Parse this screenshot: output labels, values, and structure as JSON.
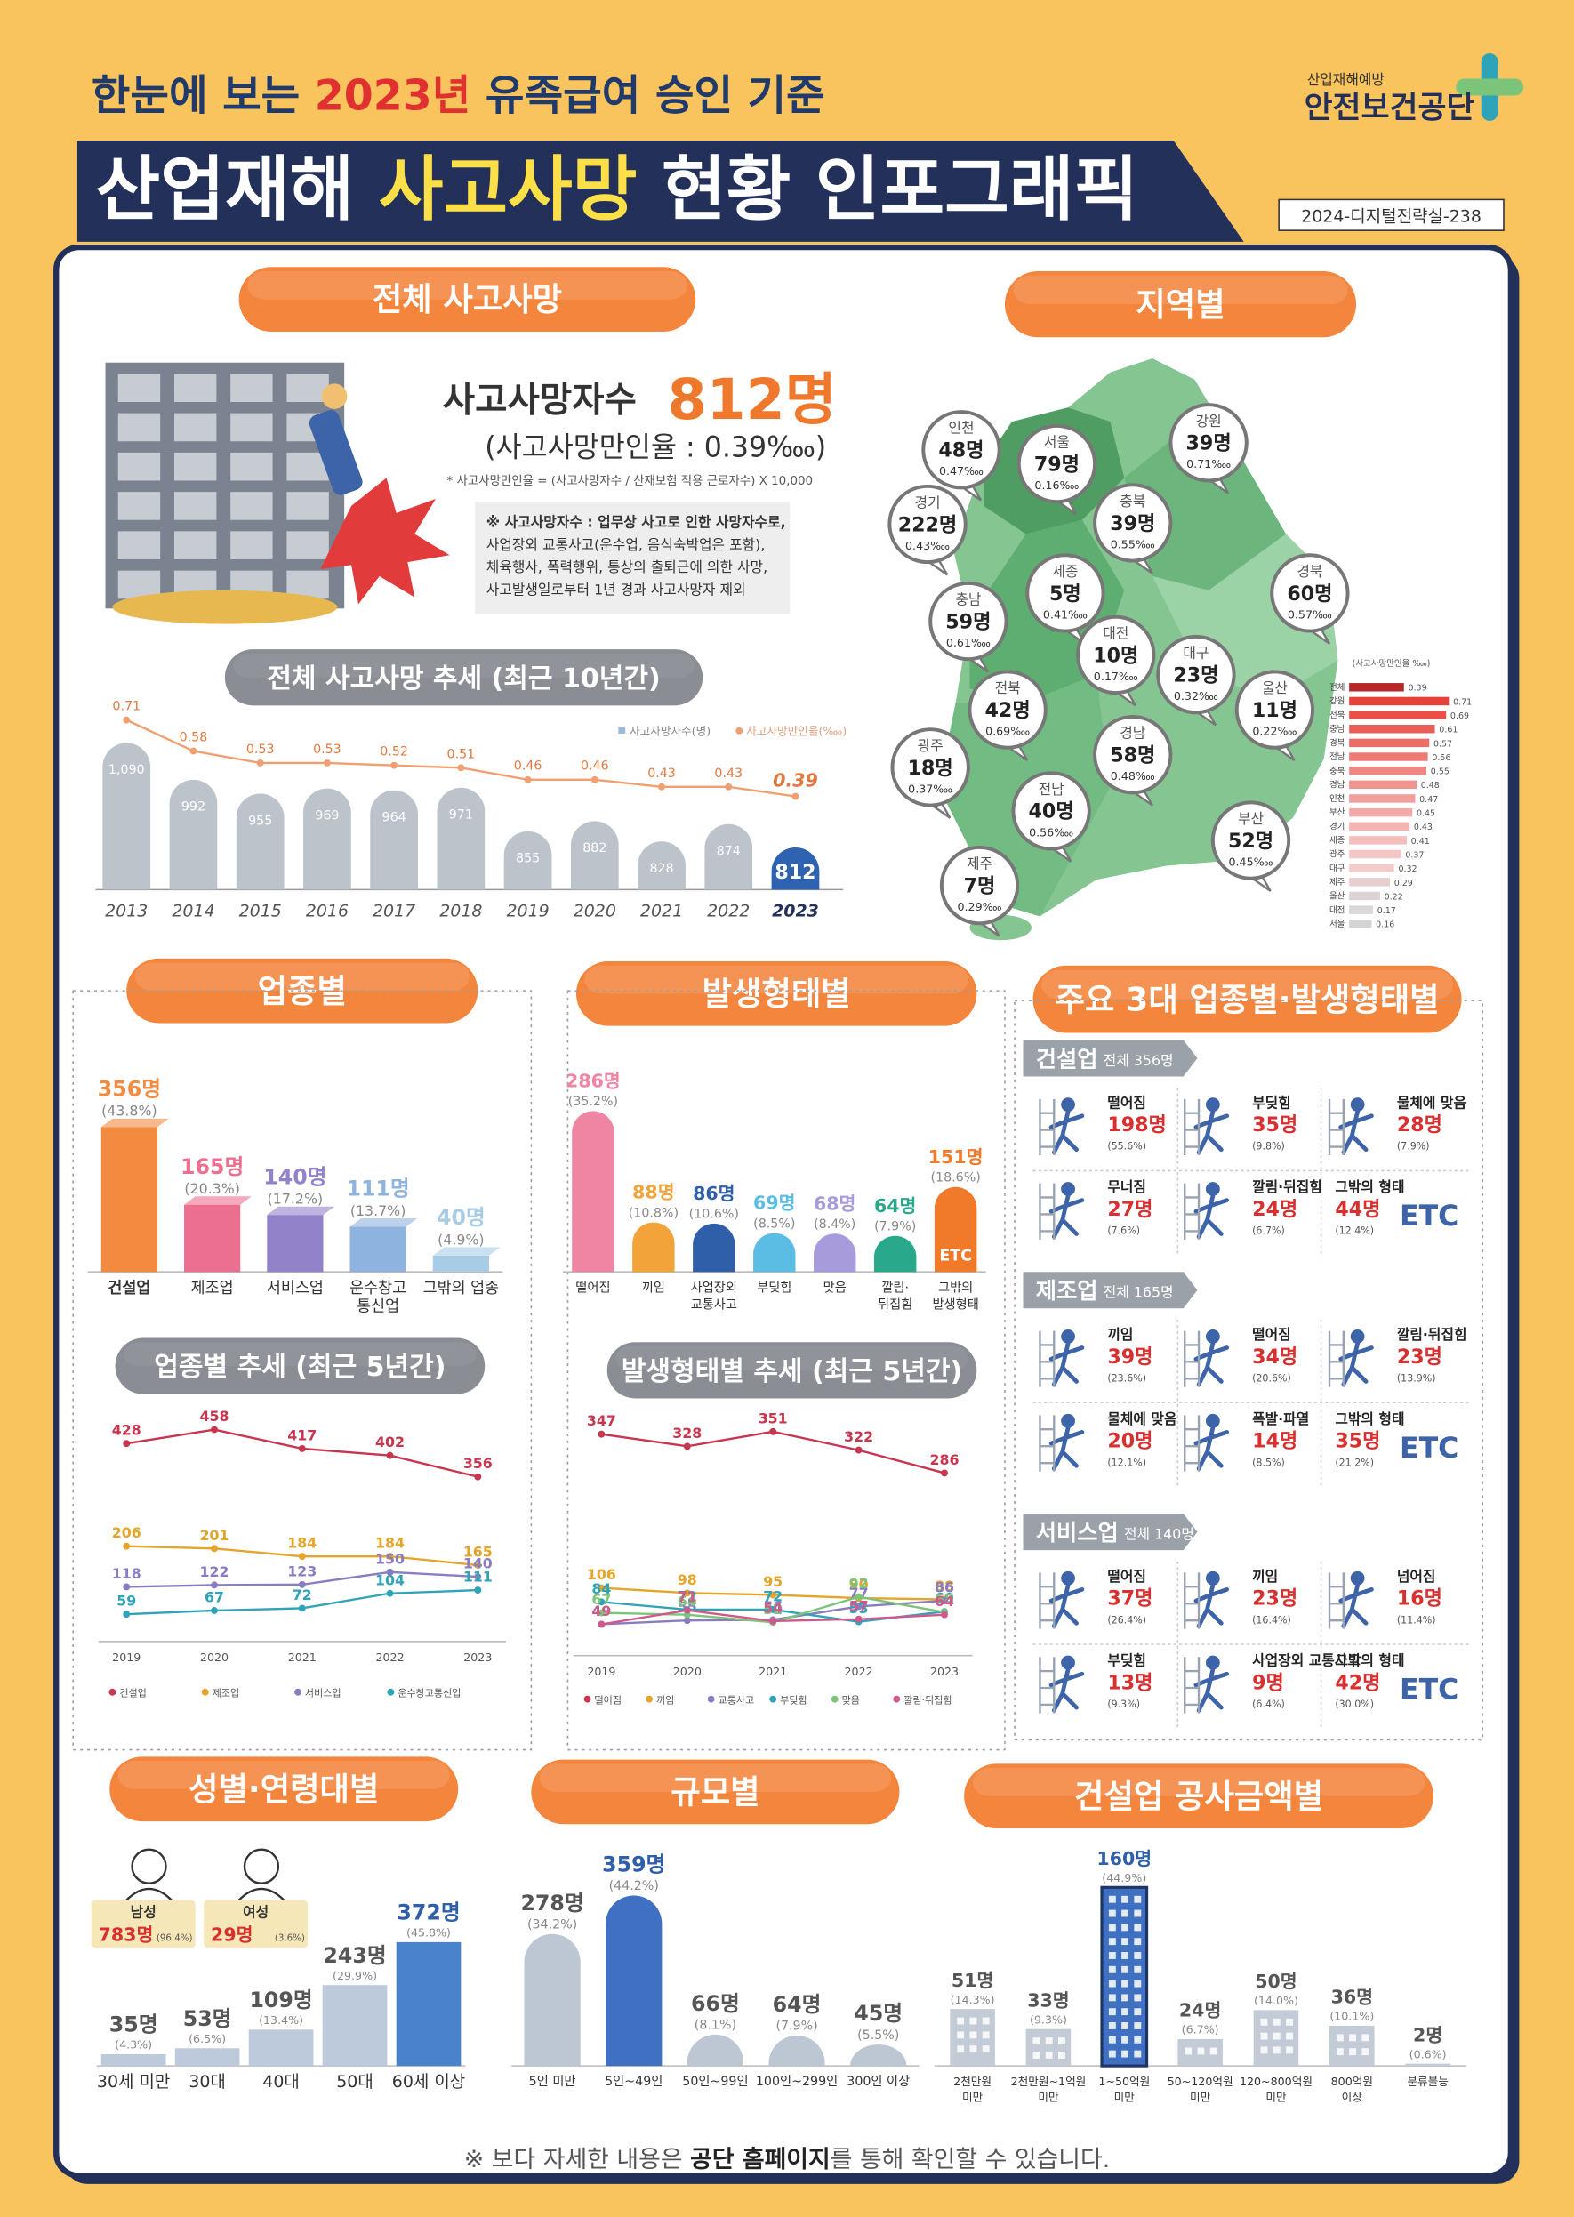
{
  "header": {
    "subtitle": [
      "한눈에 보는 ",
      "2023년",
      " 유족급여 승인 기준"
    ],
    "title": [
      "산업재해 ",
      "사고사망",
      " 현황 인포그래픽"
    ],
    "org_sub": "산업재해예방",
    "org": "안전보건공단",
    "code": "2024-디지털전략실-238"
  },
  "overview": {
    "heading": "전체 사고사망",
    "label": "사고사망자수",
    "value": "812명",
    "rate": "(사고사망만인율 : 0.39‱)",
    "formula": "* 사고사망만인율 = (사고사망자수 / 산재보험 적용 근로자수) X 10,000",
    "note": [
      "※ 사고사망자수 : 업무상 사고로 인한 사망자수로,",
      "사업장외 교통사고(운수업, 음식숙박업은 포함),",
      "체육행사, 폭력행위, 통상의 출퇴근에 의한 사망,",
      "사고발생일로부터 1년 경과 사고사망자 제외"
    ]
  },
  "region": {
    "heading": "지역별",
    "items": [
      {
        "name": "인천",
        "count": "48명",
        "rate": "0.47‱"
      },
      {
        "name": "서울",
        "count": "79명",
        "rate": "0.16‱"
      },
      {
        "name": "강원",
        "count": "39명",
        "rate": "0.71‱"
      },
      {
        "name": "경기",
        "count": "222명",
        "rate": "0.43‱"
      },
      {
        "name": "충북",
        "count": "39명",
        "rate": "0.55‱"
      },
      {
        "name": "세종",
        "count": "5명",
        "rate": "0.41‱"
      },
      {
        "name": "경북",
        "count": "60명",
        "rate": "0.57‱"
      },
      {
        "name": "충남",
        "count": "59명",
        "rate": "0.61‱"
      },
      {
        "name": "대전",
        "count": "10명",
        "rate": "0.17‱"
      },
      {
        "name": "대구",
        "count": "23명",
        "rate": "0.32‱"
      },
      {
        "name": "전북",
        "count": "42명",
        "rate": "0.69‱"
      },
      {
        "name": "울산",
        "count": "11명",
        "rate": "0.22‱"
      },
      {
        "name": "경남",
        "count": "58명",
        "rate": "0.48‱"
      },
      {
        "name": "광주",
        "count": "18명",
        "rate": "0.37‱"
      },
      {
        "name": "전남",
        "count": "40명",
        "rate": "0.56‱"
      },
      {
        "name": "부산",
        "count": "52명",
        "rate": "0.45‱"
      },
      {
        "name": "제주",
        "count": "7명",
        "rate": "0.29‱"
      }
    ]
  },
  "sections": {
    "industry": "업종별",
    "type": "발생형태별",
    "major": "주요 3대 업종별·발생형태별",
    "gender_age": "성별·연령대별",
    "size": "규모별",
    "construction": "건설업 공사금액별"
  },
  "major": [
    {
      "name": "건설업",
      "total": "전체 356명",
      "items": [
        {
          "label": "떨어짐",
          "count": "198명",
          "pct": "(55.6%)"
        },
        {
          "label": "부딪힘",
          "count": "35명",
          "pct": "(9.8%)"
        },
        {
          "label": "물체에 맞음",
          "count": "28명",
          "pct": "(7.9%)"
        },
        {
          "label": "무너짐",
          "count": "27명",
          "pct": "(7.6%)"
        },
        {
          "label": "깔림·뒤집힘",
          "count": "24명",
          "pct": "(6.7%)"
        },
        {
          "label": "그밖의 형태",
          "count": "44명",
          "pct": "(12.4%)",
          "mark": "ETC"
        }
      ]
    },
    {
      "name": "제조업",
      "total": "전체 165명",
      "items": [
        {
          "label": "끼임",
          "count": "39명",
          "pct": "(23.6%)"
        },
        {
          "label": "떨어짐",
          "count": "34명",
          "pct": "(20.6%)"
        },
        {
          "label": "깔림·뒤집힘",
          "count": "23명",
          "pct": "(13.9%)"
        },
        {
          "label": "물체에 맞음",
          "count": "20명",
          "pct": "(12.1%)"
        },
        {
          "label": "폭발·파열",
          "count": "14명",
          "pct": "(8.5%)"
        },
        {
          "label": "그밖의 형태",
          "count": "35명",
          "pct": "(21.2%)",
          "mark": "ETC"
        }
      ]
    },
    {
      "name": "서비스업",
      "total": "전체 140명",
      "items": [
        {
          "label": "떨어짐",
          "count": "37명",
          "pct": "(26.4%)"
        },
        {
          "label": "끼임",
          "count": "23명",
          "pct": "(16.4%)"
        },
        {
          "label": "넘어짐",
          "count": "16명",
          "pct": "(11.4%)"
        },
        {
          "label": "부딪힘",
          "count": "13명",
          "pct": "(9.3%)"
        },
        {
          "label": "사업장외 교통사고",
          "count": "9명",
          "pct": "(6.4%)"
        },
        {
          "label": "그밖의 형태",
          "count": "42명",
          "pct": "(30.0%)",
          "mark": "ETC"
        }
      ]
    }
  ],
  "gender": [
    {
      "name": "남성",
      "count": "783명",
      "pct": "(96.4%)"
    },
    {
      "name": "여성",
      "count": "29명",
      "pct": "(3.6%)"
    }
  ],
  "footer": [
    "※ 보다 자세한 내용은 ",
    "공단 홈페이지",
    "를 통해 확인할 수 있습니다."
  ],
  "chart_data": [
    {
      "type": "bar-line",
      "title": "전체 사고사망 추세 (최근 10년간)",
      "categories": [
        "2013",
        "2014",
        "2015",
        "2016",
        "2017",
        "2018",
        "2019",
        "2020",
        "2021",
        "2022",
        "2023"
      ],
      "series": [
        {
          "name": "사고사망자수(명)",
          "color": "#bcc3cb",
          "colors": [
            "#bcc3cb",
            "#bcc3cb",
            "#bcc3cb",
            "#bcc3cb",
            "#bcc3cb",
            "#bcc3cb",
            "#bcc3cb",
            "#bcc3cb",
            "#bcc3cb",
            "#bcc3cb",
            "#2f62b0"
          ],
          "values": [
            1090,
            992,
            955,
            969,
            964,
            971,
            855,
            882,
            828,
            874,
            812
          ],
          "value_labels": [
            "1,090",
            "992",
            "955",
            "969",
            "964",
            "971",
            "855",
            "882",
            "828",
            "874",
            "812"
          ]
        },
        {
          "name": "사고사망만인율(‱)",
          "color": "#f0a070",
          "axis": "y2",
          "values": [
            0.71,
            0.58,
            0.53,
            0.53,
            0.52,
            0.51,
            0.46,
            0.46,
            0.43,
            0.43,
            0.39
          ]
        }
      ],
      "ylim": [
        700,
        1100
      ],
      "y2lim": [
        0.3,
        0.8
      ]
    },
    {
      "type": "hbar",
      "title": "(사고사망만인율 ‱)",
      "categories": [
        "전체",
        "강원",
        "전북",
        "충남",
        "경북",
        "전남",
        "충북",
        "경남",
        "인천",
        "부산",
        "경기",
        "세종",
        "광주",
        "대구",
        "제주",
        "울산",
        "대전",
        "서울"
      ],
      "values": [
        0.39,
        0.71,
        0.69,
        0.61,
        0.57,
        0.56,
        0.55,
        0.48,
        0.47,
        0.45,
        0.43,
        0.41,
        0.37,
        0.32,
        0.29,
        0.22,
        0.17,
        0.16
      ],
      "colors": [
        "#b8282a",
        "#e8413a",
        "#e9504a",
        "#ea5e58",
        "#ec6c66",
        "#ed7a74",
        "#ee8782",
        "#f0948f",
        "#f19f9b",
        "#f2aaa7",
        "#f3b4b2",
        "#f4bebc",
        "#f4c6c5",
        "#f0cccb",
        "#e6d0cf",
        "#dcd4d4",
        "#d8d8d8",
        "#d4d4d4"
      ],
      "xlim": [
        0,
        0.8
      ]
    },
    {
      "type": "bar",
      "categories": [
        "건설업",
        "제조업",
        "서비스업",
        [
          "운수창고",
          "통신업"
        ],
        "그밖의 업종"
      ],
      "values": [
        356,
        165,
        140,
        111,
        40
      ],
      "value_labels": [
        "356명",
        "165명",
        "140명",
        "111명",
        "40명"
      ],
      "pct_labels": [
        "(43.8%)",
        "(20.3%)",
        "(17.2%)",
        "(13.7%)",
        "(4.9%)"
      ],
      "colors": [
        "#f28a3f",
        "#ec6f8f",
        "#9282c9",
        "#8fb3df",
        "#a8cbe6"
      ],
      "ylim": [
        0,
        380
      ]
    },
    {
      "type": "bar",
      "categories": [
        "떨어짐",
        "끼임",
        [
          "사업장외",
          "교통사고"
        ],
        "부딪힘",
        "맞음",
        [
          "깔림·",
          "뒤집힘"
        ],
        [
          "그밖의",
          "발생형태"
        ]
      ],
      "values": [
        286,
        88,
        86,
        69,
        68,
        64,
        151
      ],
      "value_labels": [
        "286명",
        "88명",
        "86명",
        "69명",
        "68명",
        "64명",
        "151명"
      ],
      "pct_labels": [
        "(35.2%)",
        "(10.8%)",
        "(10.6%)",
        "(8.5%)",
        "(8.4%)",
        "(7.9%)",
        "(18.6%)"
      ],
      "colors": [
        "#ef85a2",
        "#f2a43a",
        "#2f5fa8",
        "#5bbde3",
        "#a79bdb",
        "#2aa88c",
        "#f07a2a"
      ],
      "bar_texts": [
        null,
        null,
        null,
        null,
        null,
        null,
        "ETC"
      ],
      "ylim": [
        0,
        300
      ]
    },
    {
      "type": "line",
      "title": "업종별 추세 (최근 5년간)",
      "categories": [
        "2019",
        "2020",
        "2021",
        "2022",
        "2023"
      ],
      "series": [
        {
          "name": "건설업",
          "color": "#c8354f",
          "values": [
            428,
            458,
            417,
            402,
            356
          ]
        },
        {
          "name": "제조업",
          "color": "#e4a52a",
          "values": [
            206,
            201,
            184,
            184,
            165
          ]
        },
        {
          "name": "서비스업",
          "color": "#8a7cc0",
          "values": [
            118,
            122,
            123,
            150,
            140
          ]
        },
        {
          "name": "운수창고통신업",
          "color": "#2fa4b8",
          "values": [
            59,
            67,
            72,
            104,
            111
          ]
        }
      ],
      "ylim": [
        0,
        480
      ]
    },
    {
      "type": "line",
      "title": "발생형태별 추세 (최근 5년간)",
      "categories": [
        "2019",
        "2020",
        "2021",
        "2022",
        "2023"
      ],
      "series": [
        {
          "name": "떨어짐",
          "color": "#c8354f",
          "values": [
            347,
            328,
            351,
            322,
            286
          ]
        },
        {
          "name": "끼임",
          "color": "#e4a52a",
          "values": [
            106,
            98,
            95,
            90,
            88
          ]
        },
        {
          "name": "교통사고",
          "color": "#8a7cc0",
          "values": [
            49,
            55,
            56,
            77,
            86
          ]
        },
        {
          "name": "부딪힘",
          "color": "#2fa4b8",
          "values": [
            84,
            72,
            72,
            53,
            69
          ]
        },
        {
          "name": "맞음",
          "color": "#7cc47a",
          "values": [
            67,
            64,
            52,
            92,
            68
          ]
        },
        {
          "name": "깔림·뒤집힘",
          "color": "#d0588c",
          "values": [
            49,
            71,
            54,
            57,
            64
          ]
        }
      ],
      "ylim": [
        0,
        370
      ]
    },
    {
      "type": "bar",
      "categories": [
        "30세 미만",
        "30대",
        "40대",
        "50대",
        "60세 이상"
      ],
      "values": [
        35,
        53,
        109,
        243,
        372
      ],
      "value_labels": [
        "35명",
        "53명",
        "109명",
        "243명",
        "372명"
      ],
      "pct_labels": [
        "(4.3%)",
        "(6.5%)",
        "(13.4%)",
        "(29.9%)",
        "(45.8%)"
      ],
      "colors": [
        "#bccadb",
        "#bccadb",
        "#bccadb",
        "#bccadb",
        "#4a82cc"
      ],
      "ylim": [
        0,
        380
      ]
    },
    {
      "type": "bar",
      "categories": [
        "5인 미만",
        "5인~49인",
        "50인~99인",
        "100인~299인",
        "300인 이상"
      ],
      "values": [
        278,
        359,
        66,
        64,
        45
      ],
      "value_labels": [
        "278명",
        "359명",
        "66명",
        "64명",
        "45명"
      ],
      "pct_labels": [
        "(34.2%)",
        "(44.2%)",
        "(8.1%)",
        "(7.9%)",
        "(5.5%)"
      ],
      "colors": [
        "#bdc7d4",
        "#3f70c2",
        "#bdc7d4",
        "#bdc7d4",
        "#bdc7d4"
      ],
      "ylim": [
        0,
        370
      ]
    },
    {
      "type": "bar",
      "categories": [
        [
          "2천만원",
          "미만"
        ],
        [
          "2천만원~1억원",
          "미만"
        ],
        [
          "1~50억원",
          "미만"
        ],
        [
          "50~120억원",
          "미만"
        ],
        [
          "120~800억원",
          "미만"
        ],
        [
          "800억원",
          "이상"
        ],
        "분류불능"
      ],
      "values": [
        51,
        33,
        160,
        24,
        50,
        36,
        2
      ],
      "value_labels": [
        "51명",
        "33명",
        "160명",
        "24명",
        "50명",
        "36명",
        "2명"
      ],
      "pct_labels": [
        "(14.3%)",
        "(9.3%)",
        "(44.9%)",
        "(6.7%)",
        "(14.0%)",
        "(10.1%)",
        "(0.6%)"
      ],
      "colors": [
        "#c3cbd6",
        "#c3cbd6",
        "#3f70c2",
        "#c3cbd6",
        "#c3cbd6",
        "#c3cbd6",
        "#c3cbd6"
      ],
      "ylim": [
        0,
        170
      ]
    }
  ]
}
